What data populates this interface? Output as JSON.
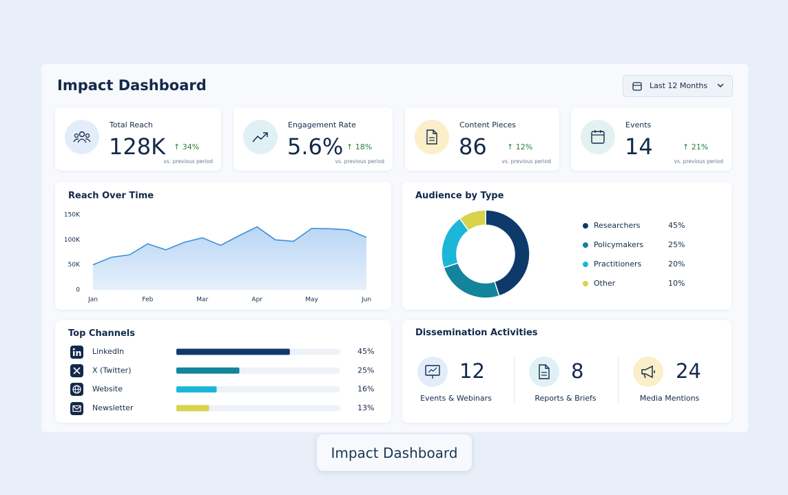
{
  "header": {
    "title": "Impact Dashboard",
    "date_filter": "Last 12 Months"
  },
  "kpis": [
    {
      "label": "Total Reach",
      "value": "128K",
      "change": "34%",
      "note": "vs. previous period"
    },
    {
      "label": "Engagement Rate",
      "value": "5.6%",
      "change": "18%",
      "note": "vs. previous period"
    },
    {
      "label": "Content Pieces",
      "value": "86",
      "change": "12%",
      "note": "vs. previous period"
    },
    {
      "label": "Events",
      "value": "14",
      "change": "21%",
      "note": "vs. previous period"
    }
  ],
  "chart_data": [
    {
      "type": "line",
      "title": "Reach Over Time",
      "categories": [
        "Jan",
        null,
        null,
        "Feb",
        null,
        null,
        "Mar",
        null,
        null,
        "Apr",
        null,
        null,
        "May",
        null,
        null,
        "Jun"
      ],
      "values": [
        50,
        65,
        70,
        92,
        80,
        95,
        104,
        89,
        108,
        126,
        100,
        97,
        123,
        122,
        120,
        105
      ],
      "color": "#3b8fd9",
      "ylim": [
        0,
        150
      ],
      "yticks": [
        0,
        {
          "value": 50,
          "label": "50K"
        },
        {
          "value": 100,
          "label": "100K"
        },
        {
          "value": 150,
          "label": "150K"
        }
      ],
      "grid": false
    },
    {
      "type": "pie",
      "title": "Audience by Type",
      "categories": [
        "Researchers",
        "Policymakers",
        "Practitioners",
        "Other"
      ],
      "values": [
        45,
        25,
        20,
        10
      ],
      "value_labels": [
        "45%",
        "25%",
        "20%",
        "10%"
      ],
      "colors": [
        "#0e3a6b",
        "#13849b",
        "#1cb6d8",
        "#d9d34c"
      ],
      "donut": true
    },
    {
      "type": "bar",
      "title": "Top Channels",
      "orientation": "horizontal",
      "categories": [
        "LinkedIn",
        "X (Twitter)",
        "Website",
        "Newsletter"
      ],
      "values": [
        45,
        25,
        16,
        13
      ],
      "value_labels": [
        "45%",
        "25%",
        "16%",
        "13%"
      ],
      "colors": [
        "#0e3a6b",
        "#13849b",
        "#1cb6d8",
        "#d9d34c"
      ],
      "xlim": [
        0,
        65
      ]
    }
  ],
  "activities": {
    "title": "Dissemination Activities",
    "items": [
      {
        "value": 12,
        "label": "Events & Webinars"
      },
      {
        "value": 8,
        "label": "Reports & Briefs"
      },
      {
        "value": 24,
        "label": "Media Mentions"
      }
    ]
  },
  "caption": "Impact Dashboard"
}
